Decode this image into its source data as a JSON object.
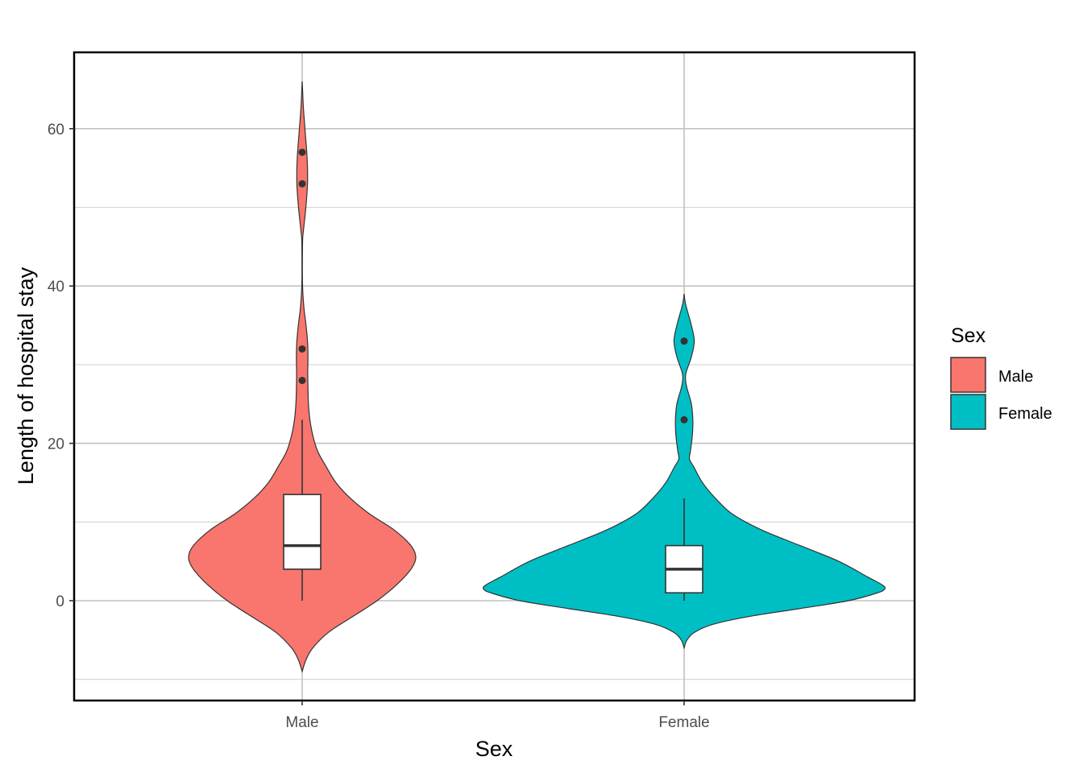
{
  "chart_data": {
    "type": "violin",
    "title": "",
    "xlabel": "Sex",
    "ylabel": "Length of hospital stay",
    "ylim": [
      -12.6,
      69.6
    ],
    "y_ticks": [
      0,
      20,
      40,
      60
    ],
    "y_minor_gridlines": [
      -10,
      10,
      30,
      50
    ],
    "grid": true,
    "categories": [
      "Male",
      "Female"
    ],
    "legend": {
      "title": "Sex",
      "position": "right",
      "entries": [
        {
          "label": "Male",
          "color": "#F8766D"
        },
        {
          "label": "Female",
          "color": "#00BFC4"
        }
      ]
    },
    "series": [
      {
        "name": "Male",
        "color": "#F8766D",
        "box": {
          "min": 0,
          "q1": 4,
          "median": 7,
          "q3": 13.5,
          "whisker_high": 23
        },
        "outliers": [
          28,
          32,
          53,
          57
        ],
        "violin_half_width": [
          [
            -9,
            0
          ],
          [
            -7.5,
            0.8
          ],
          [
            -6,
            2.2
          ],
          [
            -4,
            5.5
          ],
          [
            -2,
            10.5
          ],
          [
            0,
            15.5
          ],
          [
            2,
            19.5
          ],
          [
            4,
            22.5
          ],
          [
            5.5,
            23.5
          ],
          [
            7,
            22.5
          ],
          [
            9,
            19
          ],
          [
            11,
            14
          ],
          [
            13,
            10
          ],
          [
            15,
            7
          ],
          [
            17,
            5
          ],
          [
            19,
            3.2
          ],
          [
            21,
            2.2
          ],
          [
            23,
            1.6
          ],
          [
            25,
            1.3
          ],
          [
            27,
            1.2
          ],
          [
            29,
            1.15
          ],
          [
            31,
            1.2
          ],
          [
            33,
            1.1
          ],
          [
            35,
            0.8
          ],
          [
            37,
            0.4
          ],
          [
            39,
            0.15
          ],
          [
            41,
            0.05
          ],
          [
            44,
            0.05
          ],
          [
            46,
            0.1
          ],
          [
            47,
            0.25
          ],
          [
            49,
            0.6
          ],
          [
            51,
            0.9
          ],
          [
            53,
            1.1
          ],
          [
            55,
            1.1
          ],
          [
            57,
            0.95
          ],
          [
            59,
            0.7
          ],
          [
            61,
            0.45
          ],
          [
            63,
            0.22
          ],
          [
            65,
            0.08
          ],
          [
            66,
            0
          ]
        ]
      },
      {
        "name": "Female",
        "color": "#00BFC4",
        "box": {
          "min": 0,
          "q1": 1,
          "median": 4,
          "q3": 7,
          "whisker_high": 13
        },
        "outliers": [
          23,
          33
        ],
        "violin_half_width": [
          [
            -6,
            0
          ],
          [
            -5,
            0.6
          ],
          [
            -4,
            2.2
          ],
          [
            -3,
            6
          ],
          [
            -2,
            13.5
          ],
          [
            -1,
            24
          ],
          [
            0,
            34
          ],
          [
            1,
            40
          ],
          [
            1.5,
            41.5
          ],
          [
            2,
            41
          ],
          [
            3,
            38
          ],
          [
            5,
            32
          ],
          [
            7,
            24
          ],
          [
            9,
            16
          ],
          [
            11,
            10
          ],
          [
            13,
            6.5
          ],
          [
            15,
            3.8
          ],
          [
            17,
            2
          ],
          [
            18,
            1.1
          ],
          [
            19,
            1.3
          ],
          [
            21,
            1.7
          ],
          [
            23,
            1.8
          ],
          [
            25,
            1.5
          ],
          [
            27,
            0.6
          ],
          [
            28,
            0.3
          ],
          [
            29,
            0.4
          ],
          [
            31,
            1.5
          ],
          [
            33,
            2.1
          ],
          [
            35,
            1.5
          ],
          [
            37,
            0.6
          ],
          [
            38,
            0.2
          ],
          [
            39,
            0
          ]
        ]
      }
    ]
  }
}
